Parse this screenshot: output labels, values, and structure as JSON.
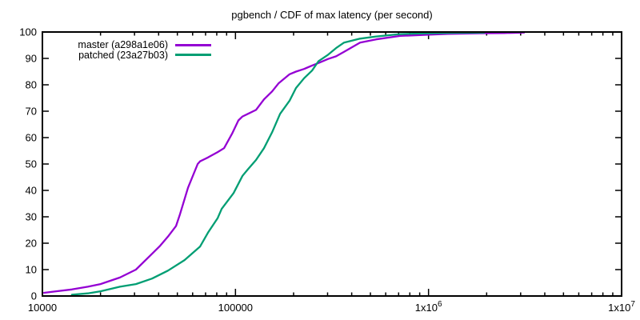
{
  "title": "pgbench / CDF of max latency (per second)",
  "colors": {
    "background": "#ffffff",
    "axis": "#000000",
    "master": "#9400d3",
    "patched": "#009e73"
  },
  "chart_data": {
    "type": "line",
    "title": "pgbench / CDF of max latency (per second)",
    "x_scale": "log10",
    "x_range": [
      10000,
      10000000
    ],
    "y_range": [
      0,
      100
    ],
    "y_tick_step": 10,
    "grid": false,
    "legend_position": "top-left",
    "x_major_ticks": [
      {
        "value": 10000,
        "label": "10000",
        "sup": ""
      },
      {
        "value": 100000,
        "label": "100000",
        "sup": ""
      },
      {
        "value": 1000000,
        "label": "1x10",
        "sup": "6"
      },
      {
        "value": 10000000,
        "label": "1x10",
        "sup": "7"
      }
    ],
    "series": [
      {
        "name": "master (a298a1e06)",
        "color": "#9400d3",
        "points": [
          [
            10200,
            1.2
          ],
          [
            11800,
            1.8
          ],
          [
            14200,
            2.5
          ],
          [
            17200,
            3.5
          ],
          [
            20000,
            4.5
          ],
          [
            25200,
            7
          ],
          [
            30500,
            10
          ],
          [
            37000,
            16
          ],
          [
            40700,
            19
          ],
          [
            44700,
            22.5
          ],
          [
            49200,
            26.5
          ],
          [
            51600,
            31
          ],
          [
            56800,
            41
          ],
          [
            63700,
            50
          ],
          [
            65500,
            51
          ],
          [
            72100,
            52.5
          ],
          [
            80900,
            54.5
          ],
          [
            87300,
            56
          ],
          [
            96000,
            61.5
          ],
          [
            103600,
            66.5
          ],
          [
            108700,
            68
          ],
          [
            116000,
            69
          ],
          [
            127800,
            70.5
          ],
          [
            140600,
            74.5
          ],
          [
            154700,
            77.5
          ],
          [
            167000,
            80.5
          ],
          [
            190800,
            84
          ],
          [
            205900,
            85
          ],
          [
            226600,
            86
          ],
          [
            249300,
            87.3
          ],
          [
            274200,
            88.5
          ],
          [
            301700,
            89.8
          ],
          [
            331900,
            90.8
          ],
          [
            365200,
            92.5
          ],
          [
            441900,
            96
          ],
          [
            534900,
            97.2
          ],
          [
            712200,
            98.5
          ],
          [
            1004000,
            99
          ],
          [
            1263000,
            99.3
          ],
          [
            1848000,
            99.5
          ],
          [
            2463000,
            99.6
          ],
          [
            3126000,
            99.8
          ]
        ]
      },
      {
        "name": "patched (23a27b03)",
        "color": "#009e73",
        "points": [
          [
            14200,
            0.5
          ],
          [
            17200,
            1
          ],
          [
            20000,
            1.8
          ],
          [
            25200,
            3.5
          ],
          [
            30500,
            4.5
          ],
          [
            37000,
            6.6
          ],
          [
            44700,
            9.6
          ],
          [
            54500,
            13.6
          ],
          [
            65500,
            18.7
          ],
          [
            72100,
            24
          ],
          [
            80900,
            29.5
          ],
          [
            84800,
            33
          ],
          [
            97800,
            39
          ],
          [
            108700,
            45.5
          ],
          [
            116000,
            48
          ],
          [
            127800,
            51.5
          ],
          [
            140600,
            56
          ],
          [
            154700,
            62
          ],
          [
            170200,
            69
          ],
          [
            190800,
            74
          ],
          [
            205900,
            78.8
          ],
          [
            226600,
            82.5
          ],
          [
            249300,
            85.4
          ],
          [
            269000,
            88.9
          ],
          [
            301700,
            91.4
          ],
          [
            331900,
            93.9
          ],
          [
            365200,
            96
          ],
          [
            441900,
            97.5
          ],
          [
            534900,
            98.3
          ],
          [
            712200,
            99.2
          ],
          [
            1004000,
            99.5
          ],
          [
            1389000,
            99.7
          ],
          [
            1939000,
            99.8
          ]
        ]
      }
    ]
  }
}
